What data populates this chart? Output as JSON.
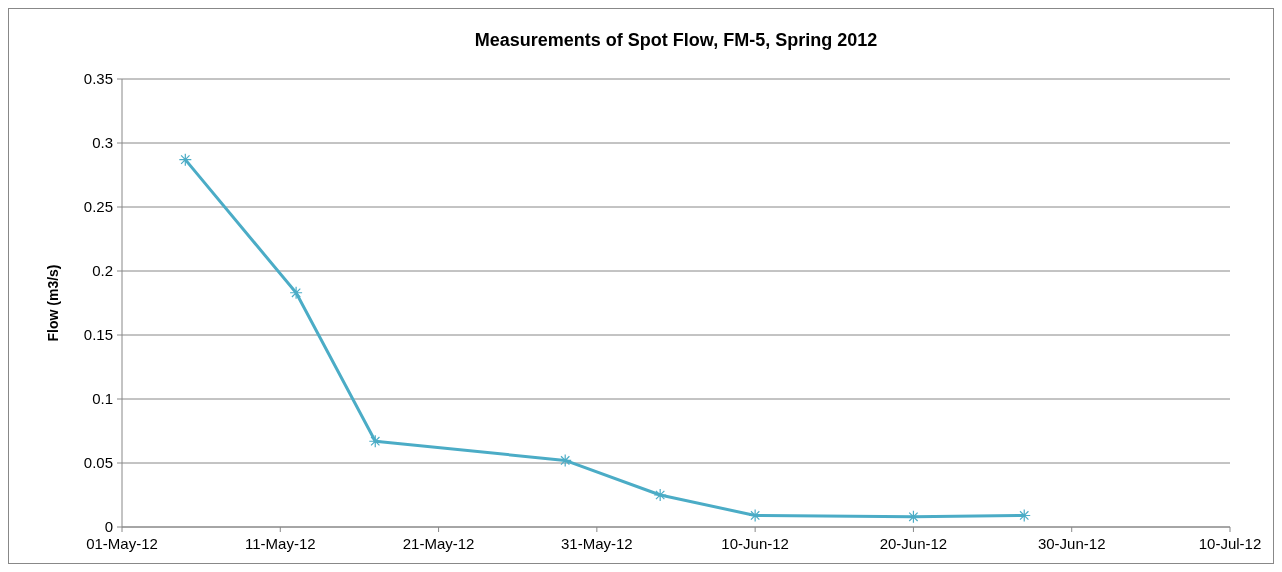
{
  "chart_data": {
    "type": "line",
    "title": "Measurements of Spot Flow, FM-5, Spring 2012",
    "ylabel": "Flow (m3/s)",
    "x": [
      "2012-05-05",
      "2012-05-12",
      "2012-05-17",
      "2012-05-29",
      "2012-06-04",
      "2012-06-10",
      "2012-06-20",
      "2012-06-27"
    ],
    "series": [
      {
        "color": "#4bacc6",
        "values": [
          0.287,
          0.183,
          0.067,
          0.052,
          0.025,
          0.009,
          0.008,
          0.009
        ]
      }
    ],
    "xlim": [
      "2012-05-01",
      "2012-07-10"
    ],
    "xticks": [
      {
        "value": "2012-05-01",
        "label": "01-May-12"
      },
      {
        "value": "2012-05-11",
        "label": "11-May-12"
      },
      {
        "value": "2012-05-21",
        "label": "21-May-12"
      },
      {
        "value": "2012-05-31",
        "label": "31-May-12"
      },
      {
        "value": "2012-06-10",
        "label": "10-Jun-12"
      },
      {
        "value": "2012-06-20",
        "label": "20-Jun-12"
      },
      {
        "value": "2012-06-30",
        "label": "30-Jun-12"
      },
      {
        "value": "2012-07-10",
        "label": "10-Jul-12"
      }
    ],
    "ylim": [
      0,
      0.35
    ],
    "yticks": [
      0,
      0.05,
      0.1,
      0.15,
      0.2,
      0.25,
      0.3,
      0.35
    ],
    "grid": "y",
    "marker": "cross",
    "line_style": "solid"
  }
}
